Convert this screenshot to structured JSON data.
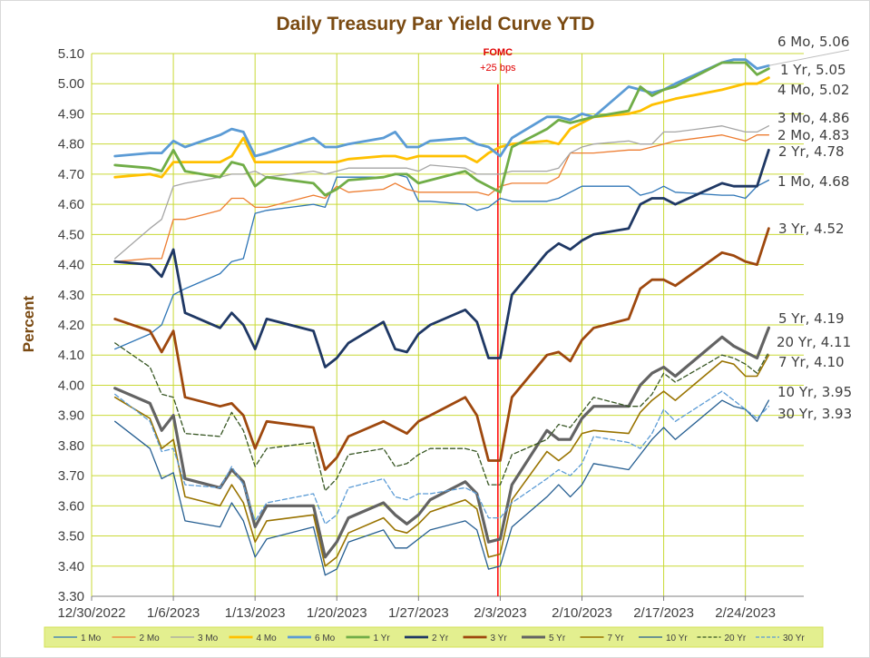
{
  "chart_data": {
    "type": "line",
    "title": "Daily Treasury Par Yield Curve YTD",
    "ylabel": "Percent",
    "xlabel": "",
    "ylim": [
      3.3,
      5.1
    ],
    "yticks": [
      "3.30",
      "3.40",
      "3.50",
      "3.60",
      "3.70",
      "3.80",
      "3.90",
      "4.00",
      "4.10",
      "4.20",
      "4.30",
      "4.40",
      "4.50",
      "4.60",
      "4.70",
      "4.80",
      "4.90",
      "5.00",
      "5.10"
    ],
    "xticks": [
      "12/30/2022",
      "1/6/2023",
      "1/13/2023",
      "1/20/2023",
      "1/27/2023",
      "2/3/2023",
      "2/10/2023",
      "2/17/2023",
      "2/24/2023"
    ],
    "x_days": [
      0,
      3,
      4,
      5,
      6,
      9,
      10,
      11,
      12,
      13,
      17,
      18,
      19,
      20,
      23,
      24,
      25,
      26,
      27,
      30,
      31,
      32,
      33,
      34,
      37,
      38,
      39,
      40,
      41,
      44,
      45,
      46,
      47,
      48,
      52,
      53,
      54,
      55,
      56
    ],
    "grid": true,
    "legend_position": "bottom",
    "annotation": {
      "line1": "FOMC",
      "line2": "+25 bps",
      "x_day": 32.8,
      "color": "#ff0000"
    },
    "series": [
      {
        "name": "1 Mo",
        "color": "#2e75b6",
        "width": 1.3,
        "dash": "",
        "end_label": "1 Mo, 4.68",
        "values": [
          4.12,
          4.17,
          4.2,
          4.3,
          4.32,
          4.37,
          4.41,
          4.42,
          4.57,
          4.58,
          4.6,
          4.59,
          4.69,
          4.69,
          4.69,
          4.7,
          4.69,
          4.61,
          4.61,
          4.6,
          4.58,
          4.59,
          4.62,
          4.61,
          4.61,
          4.62,
          4.64,
          4.66,
          4.66,
          4.66,
          4.63,
          4.64,
          4.66,
          4.64,
          4.63,
          4.63,
          4.62,
          4.66,
          4.68
        ]
      },
      {
        "name": "2 Mo",
        "color": "#ed7d31",
        "width": 1.3,
        "dash": "",
        "end_label": "2 Mo, 4.83",
        "values": [
          4.41,
          4.42,
          4.42,
          4.55,
          4.55,
          4.58,
          4.62,
          4.62,
          4.59,
          4.59,
          4.63,
          4.62,
          4.66,
          4.64,
          4.65,
          4.67,
          4.65,
          4.64,
          4.64,
          4.64,
          4.64,
          4.63,
          4.66,
          4.67,
          4.67,
          4.69,
          4.77,
          4.77,
          4.77,
          4.78,
          4.78,
          4.79,
          4.8,
          4.81,
          4.83,
          4.82,
          4.81,
          4.83,
          4.83
        ]
      },
      {
        "name": "3 Mo",
        "color": "#a5a5a5",
        "width": 1.3,
        "dash": "",
        "end_label": "3 Mo, 4.86",
        "values": [
          4.42,
          4.52,
          4.55,
          4.66,
          4.67,
          4.69,
          4.7,
          4.7,
          4.71,
          4.69,
          4.71,
          4.7,
          4.71,
          4.72,
          4.72,
          4.72,
          4.72,
          4.71,
          4.73,
          4.72,
          4.7,
          4.7,
          4.7,
          4.71,
          4.71,
          4.72,
          4.77,
          4.79,
          4.8,
          4.81,
          4.8,
          4.8,
          4.84,
          4.84,
          4.86,
          4.85,
          4.84,
          4.84,
          4.86
        ]
      },
      {
        "name": "4 Mo",
        "color": "#ffc000",
        "width": 2.8,
        "dash": "",
        "end_label": "4 Mo, 5.02",
        "values": [
          4.69,
          4.7,
          4.69,
          4.74,
          4.74,
          4.74,
          4.76,
          4.82,
          4.74,
          4.74,
          4.74,
          4.74,
          4.74,
          4.75,
          4.76,
          4.76,
          4.75,
          4.76,
          4.76,
          4.76,
          4.74,
          4.77,
          4.79,
          4.8,
          4.81,
          4.8,
          4.85,
          4.87,
          4.89,
          4.9,
          4.91,
          4.93,
          4.94,
          4.95,
          4.98,
          4.99,
          5.0,
          5.0,
          5.02
        ]
      },
      {
        "name": "6 Mo",
        "color": "#5b9bd5",
        "width": 2.8,
        "dash": "",
        "end_label": "6 Mo, 5.06",
        "values": [
          4.76,
          4.77,
          4.77,
          4.81,
          4.79,
          4.83,
          4.85,
          4.84,
          4.76,
          4.77,
          4.82,
          4.79,
          4.79,
          4.8,
          4.82,
          4.84,
          4.79,
          4.79,
          4.81,
          4.82,
          4.8,
          4.79,
          4.76,
          4.82,
          4.89,
          4.89,
          4.88,
          4.9,
          4.89,
          4.99,
          4.98,
          4.97,
          4.98,
          5.0,
          5.07,
          5.08,
          5.08,
          5.05,
          5.06
        ]
      },
      {
        "name": "1 Yr",
        "color": "#70ad47",
        "width": 2.8,
        "dash": "",
        "end_label": "1 Yr, 5.05",
        "values": [
          4.73,
          4.72,
          4.71,
          4.78,
          4.71,
          4.69,
          4.74,
          4.73,
          4.66,
          4.69,
          4.67,
          4.63,
          4.65,
          4.68,
          4.69,
          4.7,
          4.7,
          4.67,
          4.68,
          4.71,
          4.68,
          4.66,
          4.64,
          4.79,
          4.85,
          4.88,
          4.87,
          4.88,
          4.89,
          4.91,
          4.99,
          4.96,
          4.98,
          4.99,
          5.07,
          5.07,
          5.07,
          5.03,
          5.05
        ]
      },
      {
        "name": "2 Yr",
        "color": "#1f3864",
        "width": 2.8,
        "dash": "",
        "end_label": "2 Yr, 4.78",
        "values": [
          4.41,
          4.4,
          4.36,
          4.45,
          4.24,
          4.19,
          4.24,
          4.2,
          4.12,
          4.22,
          4.18,
          4.06,
          4.09,
          4.14,
          4.21,
          4.12,
          4.11,
          4.17,
          4.2,
          4.25,
          4.21,
          4.09,
          4.09,
          4.3,
          4.44,
          4.47,
          4.45,
          4.48,
          4.5,
          4.52,
          4.6,
          4.62,
          4.62,
          4.6,
          4.67,
          4.66,
          4.66,
          4.66,
          4.78
        ]
      },
      {
        "name": "3 Yr",
        "color": "#9e480e",
        "width": 2.8,
        "dash": "",
        "end_label": "3 Yr, 4.52",
        "values": [
          4.22,
          4.18,
          4.11,
          4.18,
          3.96,
          3.93,
          3.94,
          3.9,
          3.79,
          3.88,
          3.86,
          3.72,
          3.76,
          3.83,
          3.88,
          3.86,
          3.84,
          3.88,
          3.9,
          3.96,
          3.9,
          3.75,
          3.75,
          3.96,
          4.1,
          4.11,
          4.08,
          4.15,
          4.19,
          4.22,
          4.32,
          4.35,
          4.35,
          4.33,
          4.44,
          4.43,
          4.41,
          4.4,
          4.52
        ]
      },
      {
        "name": "5 Yr",
        "color": "#636363",
        "width": 3.2,
        "dash": "",
        "end_label": "5 Yr, 4.19",
        "values": [
          3.99,
          3.94,
          3.85,
          3.9,
          3.69,
          3.66,
          3.72,
          3.68,
          3.53,
          3.6,
          3.6,
          3.43,
          3.48,
          3.56,
          3.61,
          3.57,
          3.54,
          3.57,
          3.62,
          3.68,
          3.64,
          3.48,
          3.49,
          3.67,
          3.85,
          3.82,
          3.82,
          3.89,
          3.93,
          3.93,
          4.0,
          4.04,
          4.06,
          4.03,
          4.16,
          4.13,
          4.11,
          4.09,
          4.19
        ]
      },
      {
        "name": "7 Yr",
        "color": "#997300",
        "width": 1.6,
        "dash": "",
        "end_label": "7 Yr, 4.10",
        "values": [
          3.96,
          3.89,
          3.79,
          3.82,
          3.63,
          3.6,
          3.67,
          3.61,
          3.48,
          3.55,
          3.57,
          3.4,
          3.43,
          3.51,
          3.56,
          3.52,
          3.51,
          3.54,
          3.58,
          3.62,
          3.59,
          3.43,
          3.44,
          3.62,
          3.78,
          3.75,
          3.78,
          3.84,
          3.85,
          3.84,
          3.91,
          3.95,
          3.98,
          3.95,
          4.08,
          4.07,
          4.03,
          4.03,
          4.1
        ]
      },
      {
        "name": "10 Yr",
        "color": "#255e91",
        "width": 1.3,
        "dash": "",
        "end_label": "10 Yr, 3.95",
        "values": [
          3.88,
          3.79,
          3.69,
          3.71,
          3.55,
          3.53,
          3.61,
          3.55,
          3.43,
          3.49,
          3.53,
          3.37,
          3.39,
          3.48,
          3.52,
          3.46,
          3.46,
          3.49,
          3.52,
          3.55,
          3.52,
          3.39,
          3.4,
          3.53,
          3.63,
          3.67,
          3.63,
          3.67,
          3.74,
          3.72,
          3.77,
          3.82,
          3.86,
          3.82,
          3.95,
          3.93,
          3.92,
          3.88,
          3.95
        ]
      },
      {
        "name": "20 Yr",
        "color": "#375623",
        "width": 1.3,
        "dash": "5,3",
        "end_label": "20 Yr, 4.11",
        "values": [
          4.14,
          4.06,
          3.97,
          3.96,
          3.84,
          3.83,
          3.91,
          3.85,
          3.73,
          3.79,
          3.81,
          3.65,
          3.69,
          3.77,
          3.79,
          3.73,
          3.74,
          3.77,
          3.79,
          3.79,
          3.78,
          3.67,
          3.67,
          3.77,
          3.82,
          3.87,
          3.86,
          3.91,
          3.96,
          3.93,
          3.93,
          3.97,
          4.04,
          4.01,
          4.1,
          4.09,
          4.07,
          4.04,
          4.11
        ]
      },
      {
        "name": "30 Yr",
        "color": "#5b9bd5",
        "width": 1.3,
        "dash": "5,3",
        "end_label": "30 Yr, 3.93",
        "values": [
          3.97,
          3.88,
          3.78,
          3.79,
          3.67,
          3.66,
          3.73,
          3.67,
          3.55,
          3.61,
          3.64,
          3.54,
          3.57,
          3.66,
          3.69,
          3.63,
          3.62,
          3.64,
          3.64,
          3.66,
          3.64,
          3.56,
          3.56,
          3.61,
          3.69,
          3.72,
          3.7,
          3.74,
          3.83,
          3.81,
          3.79,
          3.84,
          3.92,
          3.88,
          3.98,
          3.95,
          3.92,
          3.89,
          3.93
        ]
      }
    ]
  }
}
